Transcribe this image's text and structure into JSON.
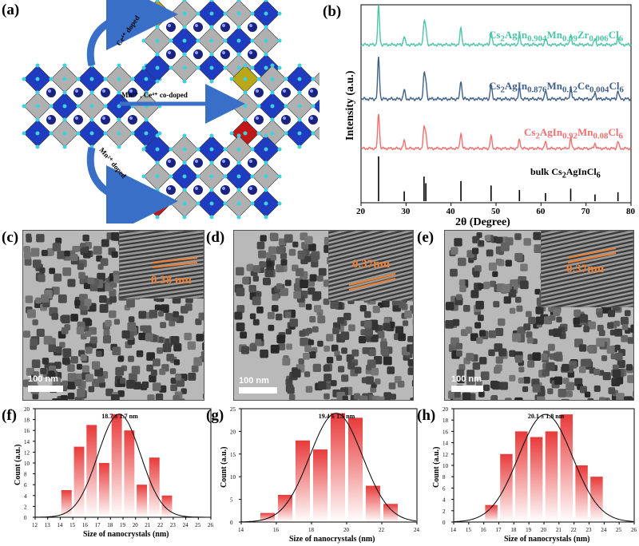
{
  "labels": {
    "a": "(a)",
    "b": "(b)",
    "c": "(c)",
    "d": "(d)",
    "e": "(e)",
    "f": "(f)",
    "g": "(g)",
    "h": "(h)"
  },
  "panel_a": {
    "arrow_top": "Ce⁴⁺ doped",
    "arrow_mid": "Mn²⁺ , Ce⁴⁺ co-doped",
    "arrow_bottom": "Mn²⁺ doped",
    "colors": {
      "blue": "#1f3cc0",
      "gray": "#b0b0b0",
      "olive": "#b8a81a",
      "red": "#c01818",
      "sphere": "#1a237e",
      "corner": "#40d0e0"
    }
  },
  "panel_b": {
    "ylabel": "Intensity (a.u.)",
    "xlabel": "2θ (Degree)",
    "xticks": [
      "20",
      "30",
      "40",
      "50",
      "60",
      "70",
      "80"
    ],
    "curves": [
      {
        "prefix": "Cs",
        "s1": "2",
        "m1": "AgIn",
        "s2": "0.904",
        "m2": "Mn",
        "s3": "0.09",
        "m3": "Zr",
        "s4": "0.006",
        "m4": "Cl",
        "s5": "6",
        "color": "#4cc4a8"
      },
      {
        "prefix": "Cs",
        "s1": "2",
        "m1": "AgIn",
        "s2": "0.876",
        "m2": "Mn",
        "s3": "0.12",
        "m3": "Ce",
        "s4": "0.004",
        "m4": "Cl",
        "s5": "6",
        "color": "#40608a"
      },
      {
        "prefix": "Cs",
        "s1": "2",
        "m1": "AgIn",
        "s2": "0.92",
        "m2": "Mn",
        "s3": "0.08",
        "m3": "Cl",
        "s4": "6",
        "m4": "",
        "s5": "",
        "color": "#f07070"
      }
    ],
    "bulk": {
      "prefix": "bulk Cs",
      "s1": "2",
      "m1": "AgInCl",
      "s2": "6"
    },
    "peaks": [
      23.9,
      29.6,
      34.0,
      34.4,
      42.2,
      48.9,
      55.2,
      61.0,
      66.6,
      72.0,
      77.1
    ],
    "peak_heights": [
      1.0,
      0.22,
      0.55,
      0.4,
      0.45,
      0.35,
      0.25,
      0.18,
      0.28,
      0.15,
      0.2
    ]
  },
  "tem": {
    "c": {
      "spacing": "0.38 nm",
      "scale": "100 nm"
    },
    "d": {
      "spacing": "0.37nm",
      "scale": "100 nm"
    },
    "e": {
      "spacing": "0.37nm",
      "scale": "100 nm"
    }
  },
  "chart_data": [
    {
      "type": "bar",
      "panel": "f",
      "title": "18.7 ± 1.7 nm",
      "xlabel": "Size of nanocrystals (nm)",
      "ylabel": "Count (a.u.)",
      "xlim": [
        12,
        26
      ],
      "ylim": [
        0,
        20
      ],
      "xticks": [
        12,
        13,
        14,
        15,
        16,
        17,
        18,
        19,
        20,
        21,
        22,
        23,
        24,
        25,
        26
      ],
      "yticks": [
        0,
        2,
        4,
        6,
        8,
        10,
        12,
        14,
        16,
        18,
        20
      ],
      "x": [
        14.5,
        15.5,
        16.5,
        17.5,
        18.5,
        19.5,
        20.5,
        21.5,
        22.5
      ],
      "values": [
        5,
        13,
        17,
        10,
        19,
        16,
        6,
        11,
        4
      ],
      "fit": {
        "mean": 18.7,
        "sigma": 1.7,
        "peak": 19
      }
    },
    {
      "type": "bar",
      "panel": "g",
      "title": "19.4 ± 1.5 nm",
      "xlabel": "Size of nanocrystals (nm)",
      "ylabel": "Count (a.u.)",
      "xlim": [
        14,
        24
      ],
      "ylim": [
        0,
        25
      ],
      "xticks": [
        14,
        16,
        18,
        20,
        22,
        24
      ],
      "yticks": [
        0,
        5,
        10,
        15,
        20,
        25
      ],
      "x": [
        15.5,
        16.5,
        17.5,
        18.5,
        19.5,
        20.5,
        21.5,
        22.5
      ],
      "values": [
        2,
        6,
        18,
        16,
        24,
        23,
        8,
        4
      ],
      "fit": {
        "mean": 19.4,
        "sigma": 1.5,
        "peak": 24
      }
    },
    {
      "type": "bar",
      "panel": "h",
      "title": "20.1 ± 1.8 nm",
      "xlabel": "Size of nanocrystals (nm)",
      "ylabel": "Count (a.u.)",
      "xlim": [
        14,
        26
      ],
      "ylim": [
        0,
        20
      ],
      "xticks": [
        14,
        15,
        16,
        17,
        18,
        19,
        20,
        21,
        22,
        23,
        24,
        25,
        26
      ],
      "yticks": [
        0,
        2,
        4,
        6,
        8,
        10,
        12,
        14,
        16,
        18,
        20
      ],
      "x": [
        16.5,
        17.5,
        18.5,
        19.5,
        20.5,
        21.5,
        22.5,
        23.5
      ],
      "values": [
        3,
        12,
        16,
        15,
        16,
        19,
        10,
        8
      ],
      "fit": {
        "mean": 20.1,
        "sigma": 1.8,
        "peak": 19
      }
    }
  ]
}
